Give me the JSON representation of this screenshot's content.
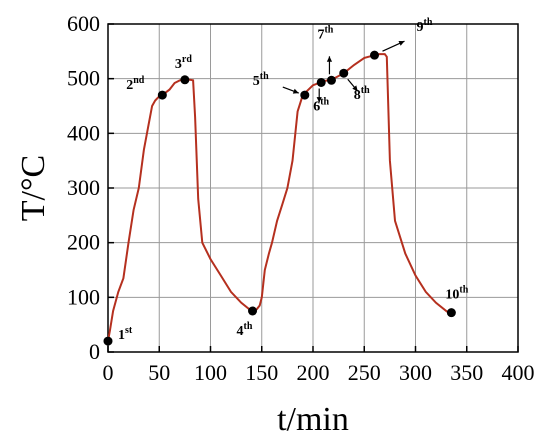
{
  "chart_data": {
    "type": "line",
    "title": "",
    "xlabel": "t/min",
    "ylabel": "T/°C",
    "xlim": [
      0,
      400
    ],
    "ylim": [
      0,
      600
    ],
    "x_ticks": [
      0,
      50,
      100,
      150,
      200,
      250,
      300,
      350,
      400
    ],
    "y_ticks": [
      0,
      100,
      200,
      300,
      400,
      500,
      600
    ],
    "grid": true,
    "line_color": "#b5301f",
    "marker_color": "#000000",
    "series": [
      {
        "name": "",
        "x": [
          0,
          2,
          5,
          10,
          15,
          20,
          25,
          30,
          35,
          40,
          43,
          46,
          50,
          53,
          60,
          65,
          70,
          75,
          80,
          83,
          85,
          88,
          92,
          100,
          110,
          120,
          130,
          140,
          145,
          148,
          150,
          153,
          157,
          160,
          165,
          170,
          175,
          180,
          185,
          190,
          200,
          210,
          220,
          230,
          240,
          250,
          260,
          265,
          270,
          272,
          275,
          280,
          290,
          300,
          310,
          320,
          330,
          336
        ],
        "y": [
          20,
          40,
          75,
          110,
          135,
          200,
          260,
          300,
          370,
          420,
          450,
          460,
          468,
          470,
          480,
          492,
          497,
          498,
          498,
          497,
          430,
          280,
          200,
          170,
          140,
          110,
          90,
          75,
          78,
          85,
          100,
          150,
          180,
          200,
          240,
          270,
          300,
          350,
          440,
          470,
          488,
          495,
          500,
          510,
          525,
          538,
          543,
          545,
          545,
          540,
          350,
          240,
          180,
          140,
          110,
          90,
          75,
          68
        ]
      }
    ],
    "points": [
      {
        "label": "1",
        "suffix": "st",
        "x": 0,
        "y": 20
      },
      {
        "label": "2",
        "suffix": "nd",
        "x": 53,
        "y": 470
      },
      {
        "label": "3",
        "suffix": "rd",
        "x": 75,
        "y": 498
      },
      {
        "label": "4",
        "suffix": "th",
        "x": 141,
        "y": 75
      },
      {
        "label": "5",
        "suffix": "th",
        "x": 192,
        "y": 470
      },
      {
        "label": "6",
        "suffix": "th",
        "x": 208,
        "y": 493
      },
      {
        "label": "7",
        "suffix": "th",
        "x": 218,
        "y": 497
      },
      {
        "label": "8",
        "suffix": "th",
        "x": 230,
        "y": 510
      },
      {
        "label": "9",
        "suffix": "th",
        "x": 260,
        "y": 543
      },
      {
        "label": "10",
        "suffix": "th",
        "x": 335,
        "y": 72
      }
    ]
  }
}
